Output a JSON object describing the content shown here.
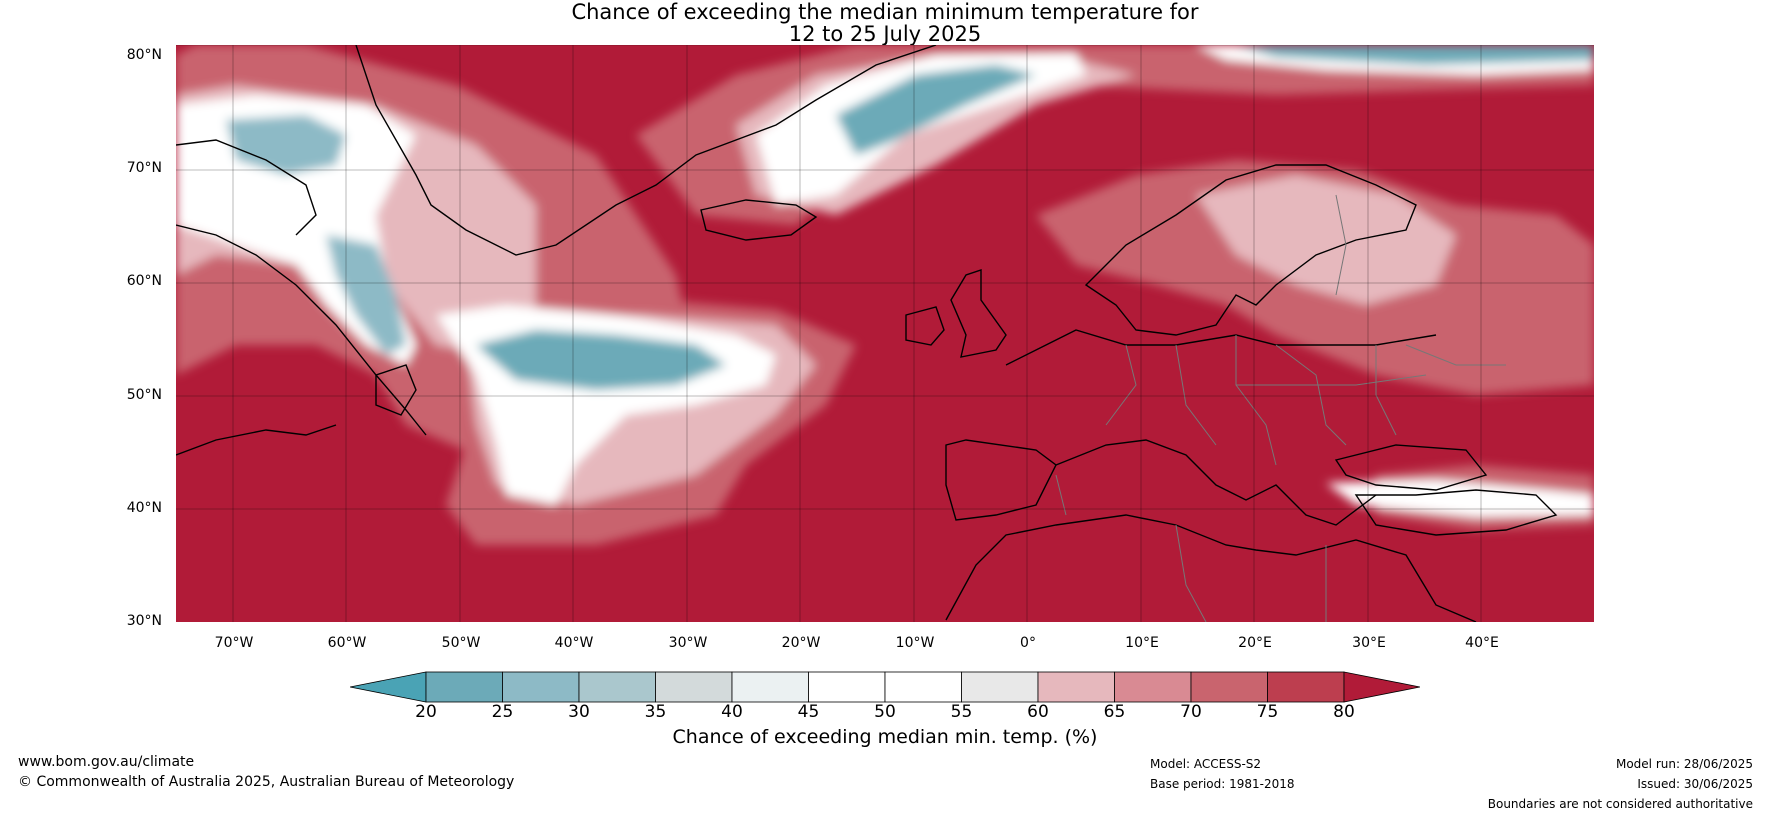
{
  "title": {
    "line1": "Chance of exceeding the median minimum temperature for",
    "line2": "12 to 25 July 2025"
  },
  "map": {
    "lat_labels": [
      "80°N",
      "70°N",
      "60°N",
      "50°N",
      "40°N",
      "30°N"
    ],
    "lon_labels": [
      "70°W",
      "60°W",
      "50°W",
      "40°W",
      "30°W",
      "20°W",
      "10°W",
      "0°",
      "10°E",
      "20°E",
      "30°E",
      "40°E"
    ],
    "extent": {
      "lon_min": -75,
      "lon_max": 50,
      "lat_min": 30,
      "lat_max": 81
    }
  },
  "colorbar": {
    "label": "Chance of exceeding median min. temp. (%)",
    "ticks": [
      "20",
      "25",
      "30",
      "35",
      "40",
      "45",
      "50",
      "55",
      "60",
      "65",
      "70",
      "75",
      "80"
    ],
    "colors": [
      "#4aa3b5",
      "#6caab8",
      "#8dbac6",
      "#aac7cd",
      "#d3dadb",
      "#ebf1f2",
      "#ffffff",
      "#ffffff",
      "#e8e8e8",
      "#e6b8bd",
      "#d98a93",
      "#c9646e",
      "#bd3e4f",
      "#b11b38"
    ]
  },
  "footer": {
    "url": "www.bom.gov.au/climate",
    "copyright": "© Commonwealth of Australia 2025, Australian Bureau of Meteorology",
    "model": "Model: ACCESS-S2",
    "base_period": "Base period: 1981-2018",
    "model_run": "Model run: 28/06/2025",
    "issued": "Issued: 30/06/2025",
    "disclaimer": "Boundaries are not considered authoritative"
  }
}
